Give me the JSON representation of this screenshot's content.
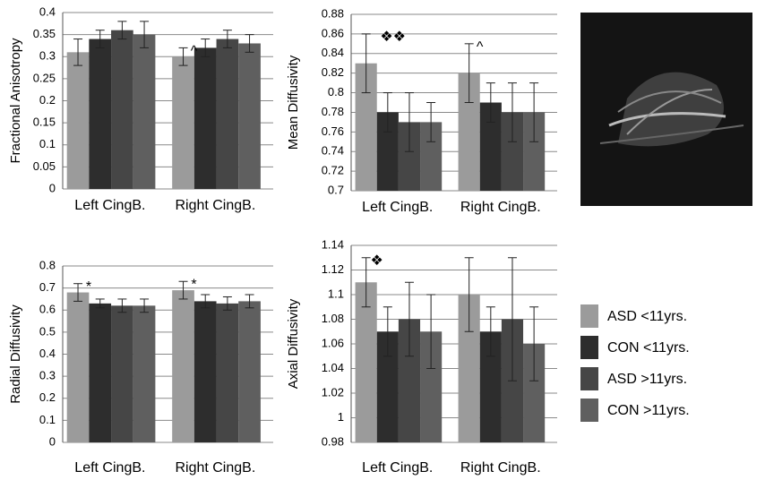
{
  "legend": {
    "items": [
      {
        "name": "ASD <11yrs.",
        "color": "#9b9b9b"
      },
      {
        "name": "CON <11yrs.",
        "color": "#2d2d2d"
      },
      {
        "name": "ASD >11yrs.",
        "color": "#464646"
      },
      {
        "name": "CON >11yrs.",
        "color": "#5f5f5f"
      }
    ]
  },
  "chart_data": [
    {
      "type": "bar",
      "y_label": "Fractional Anisotropy",
      "categories": [
        "Left CingB.",
        "Right CingB."
      ],
      "ylim": [
        0,
        0.4
      ],
      "yticks": [
        0,
        0.05,
        0.1,
        0.15,
        0.2,
        0.25,
        0.3,
        0.35,
        0.4
      ],
      "grid": true,
      "series": [
        {
          "values": [
            0.31,
            0.3
          ],
          "errors": [
            0.03,
            0.02
          ]
        },
        {
          "values": [
            0.34,
            0.32
          ],
          "errors": [
            0.02,
            0.02
          ]
        },
        {
          "values": [
            0.36,
            0.34
          ],
          "errors": [
            0.02,
            0.02
          ]
        },
        {
          "values": [
            0.35,
            0.33
          ],
          "errors": [
            0.03,
            0.02
          ]
        }
      ],
      "annotations": [
        {
          "text": "^",
          "category": "Right CingB."
        }
      ]
    },
    {
      "type": "bar",
      "y_label": "Mean Diffusivity",
      "categories": [
        "Left CingB.",
        "Right CingB."
      ],
      "ylim": [
        0.7,
        0.88
      ],
      "yticks": [
        0.7,
        0.72,
        0.74,
        0.76,
        0.78,
        0.8,
        0.82,
        0.84,
        0.86,
        0.88
      ],
      "grid": true,
      "series": [
        {
          "values": [
            0.83,
            0.82
          ],
          "errors": [
            0.03,
            0.03
          ]
        },
        {
          "values": [
            0.78,
            0.79
          ],
          "errors": [
            0.02,
            0.02
          ]
        },
        {
          "values": [
            0.77,
            0.78
          ],
          "errors": [
            0.03,
            0.03
          ]
        },
        {
          "values": [
            0.77,
            0.78
          ],
          "errors": [
            0.02,
            0.03
          ]
        }
      ],
      "annotations": [
        {
          "text": "❖❖",
          "category": "Left CingB."
        },
        {
          "text": "^",
          "category": "Right CingB."
        }
      ]
    },
    {
      "type": "bar",
      "y_label": "Radial Diffusivity",
      "categories": [
        "Left CingB.",
        "Right CingB."
      ],
      "ylim": [
        0,
        0.8
      ],
      "yticks": [
        0,
        0.1,
        0.2,
        0.3,
        0.4,
        0.5,
        0.6,
        0.7,
        0.8
      ],
      "grid": true,
      "series": [
        {
          "values": [
            0.68,
            0.69
          ],
          "errors": [
            0.04,
            0.04
          ]
        },
        {
          "values": [
            0.63,
            0.64
          ],
          "errors": [
            0.02,
            0.03
          ]
        },
        {
          "values": [
            0.62,
            0.63
          ],
          "errors": [
            0.03,
            0.03
          ]
        },
        {
          "values": [
            0.62,
            0.64
          ],
          "errors": [
            0.03,
            0.03
          ]
        }
      ],
      "annotations": [
        {
          "text": "*",
          "category": "Left CingB."
        },
        {
          "text": "*",
          "category": "Right CingB."
        }
      ]
    },
    {
      "type": "bar",
      "y_label": "Axial Diffusivity",
      "categories": [
        "Left CingB.",
        "Right CingB."
      ],
      "ylim": [
        0.98,
        1.14
      ],
      "yticks": [
        0.98,
        1,
        1.02,
        1.04,
        1.06,
        1.08,
        1.1,
        1.12,
        1.14
      ],
      "grid": true,
      "series": [
        {
          "values": [
            1.11,
            1.1
          ],
          "errors": [
            0.02,
            0.03
          ]
        },
        {
          "values": [
            1.07,
            1.07
          ],
          "errors": [
            0.02,
            0.02
          ]
        },
        {
          "values": [
            1.08,
            1.08
          ],
          "errors": [
            0.03,
            0.05
          ]
        },
        {
          "values": [
            1.07,
            1.06
          ],
          "errors": [
            0.03,
            0.03
          ]
        }
      ],
      "annotations": [
        {
          "text": "❖",
          "category": "Left CingB."
        }
      ]
    }
  ]
}
